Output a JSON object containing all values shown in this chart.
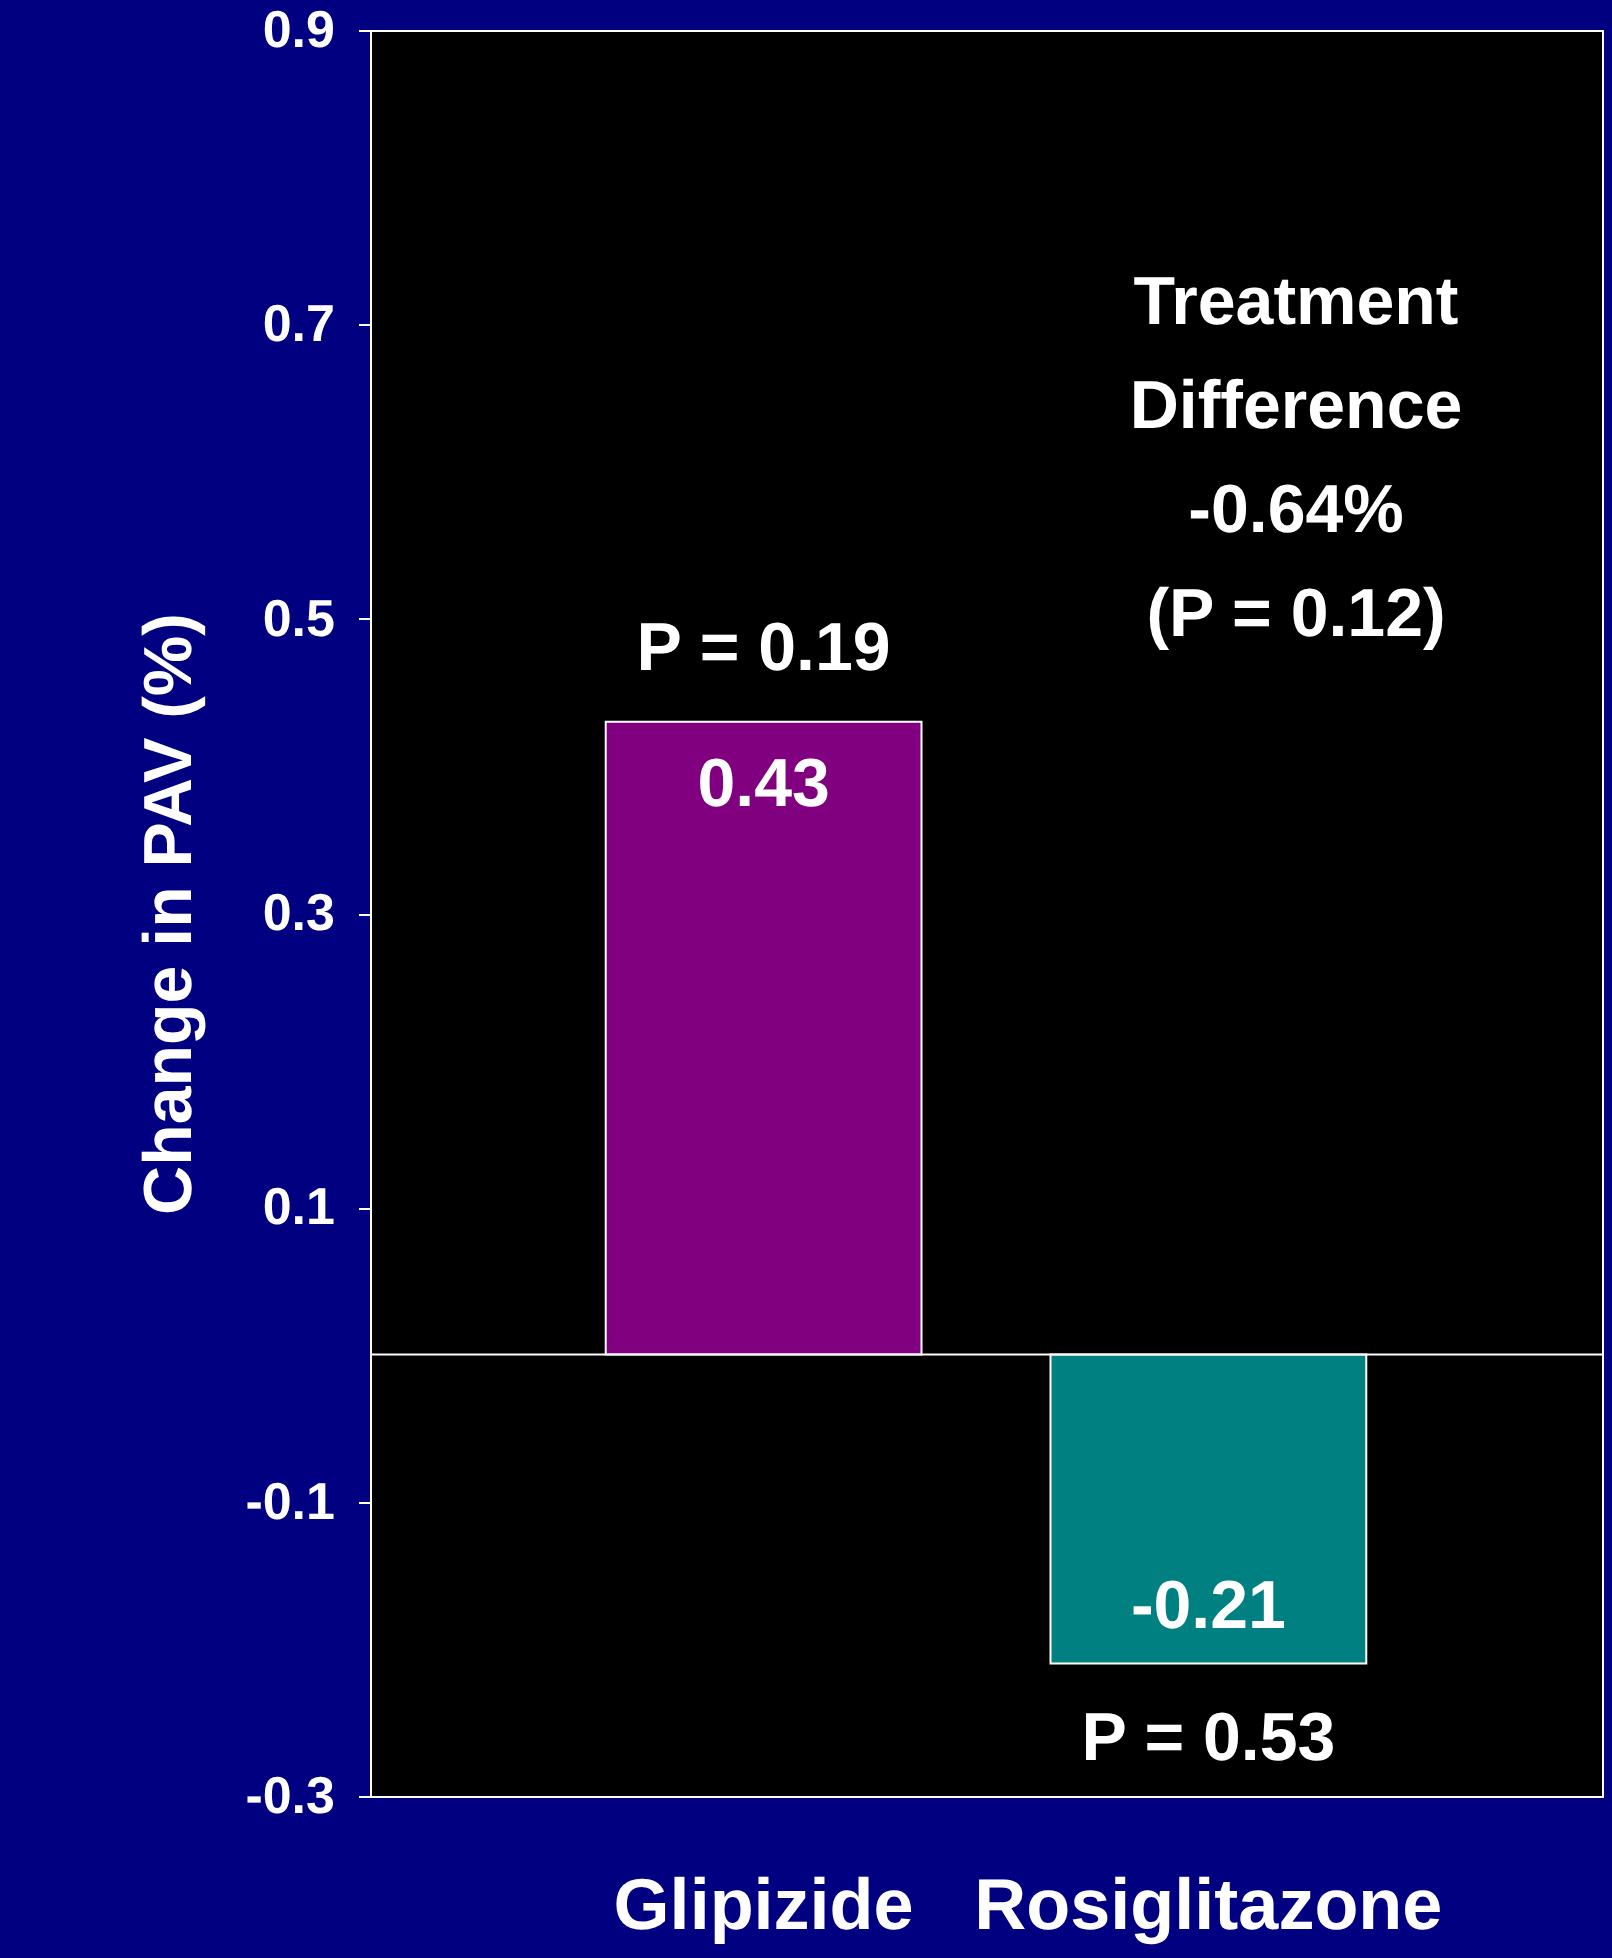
{
  "chart_data": {
    "type": "bar",
    "ylabel": "Change in PAV (%)",
    "categories": [
      "Glipizide",
      "Rosiglitazone"
    ],
    "values": [
      0.43,
      -0.21
    ],
    "colors": [
      "#800080",
      "#008080"
    ],
    "ylim": [
      -0.3,
      0.9
    ],
    "yticks": [
      -0.3,
      -0.1,
      0.1,
      0.3,
      0.5,
      0.7,
      0.9
    ],
    "data_labels": true,
    "grid": false,
    "annotations": [
      {
        "text": "P = 0.19",
        "x": "Glipizide",
        "y": 0.43
      },
      {
        "text": "P = 0.53",
        "x": "Rosiglitazone",
        "y": -0.21
      },
      "Treatment\nDifference\n-0.64%\n(P = 0.12)"
    ]
  }
}
